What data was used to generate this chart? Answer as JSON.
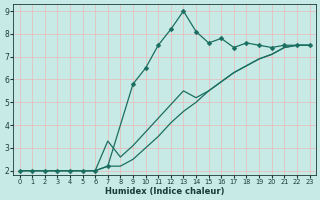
{
  "xlabel": "Humidex (Indice chaleur)",
  "xlim": [
    -0.5,
    23.5
  ],
  "ylim": [
    1.8,
    9.3
  ],
  "xticks": [
    0,
    1,
    2,
    3,
    4,
    5,
    6,
    7,
    8,
    9,
    10,
    11,
    12,
    13,
    14,
    15,
    16,
    17,
    18,
    19,
    20,
    21,
    22,
    23
  ],
  "yticks": [
    2,
    3,
    4,
    5,
    6,
    7,
    8,
    9
  ],
  "background_color": "#c8eae6",
  "grid_color": "#e8b8b8",
  "line_color": "#1a6e60",
  "line1_x": [
    0,
    1,
    2,
    3,
    4,
    5,
    6,
    7,
    9,
    10,
    11,
    12,
    13,
    14,
    15,
    16,
    17,
    18,
    19,
    20,
    21,
    22,
    23
  ],
  "line1_y": [
    2.0,
    2.0,
    2.0,
    2.0,
    2.0,
    2.0,
    2.0,
    2.2,
    5.8,
    6.5,
    7.5,
    8.2,
    9.0,
    8.1,
    7.6,
    7.8,
    7.4,
    7.6,
    7.5,
    7.4,
    7.5,
    7.5,
    7.5
  ],
  "line2_x": [
    0,
    1,
    2,
    3,
    4,
    5,
    6,
    7,
    8,
    9,
    10,
    11,
    12,
    13,
    14,
    15,
    16,
    17,
    18,
    19,
    20,
    21,
    22,
    23
  ],
  "line2_y": [
    2.0,
    2.0,
    2.0,
    2.0,
    2.0,
    2.0,
    2.0,
    3.3,
    2.6,
    3.1,
    3.7,
    4.3,
    4.9,
    5.5,
    5.2,
    5.5,
    5.9,
    6.3,
    6.6,
    6.9,
    7.1,
    7.4,
    7.5,
    7.5
  ],
  "line3_x": [
    0,
    1,
    2,
    3,
    4,
    5,
    6,
    7,
    8,
    9,
    10,
    11,
    12,
    13,
    14,
    15,
    16,
    17,
    18,
    19,
    20,
    21,
    22,
    23
  ],
  "line3_y": [
    2.0,
    2.0,
    2.0,
    2.0,
    2.0,
    2.0,
    2.0,
    2.2,
    2.2,
    2.5,
    3.0,
    3.5,
    4.1,
    4.6,
    5.0,
    5.5,
    5.9,
    6.3,
    6.6,
    6.9,
    7.1,
    7.4,
    7.5,
    7.5
  ]
}
